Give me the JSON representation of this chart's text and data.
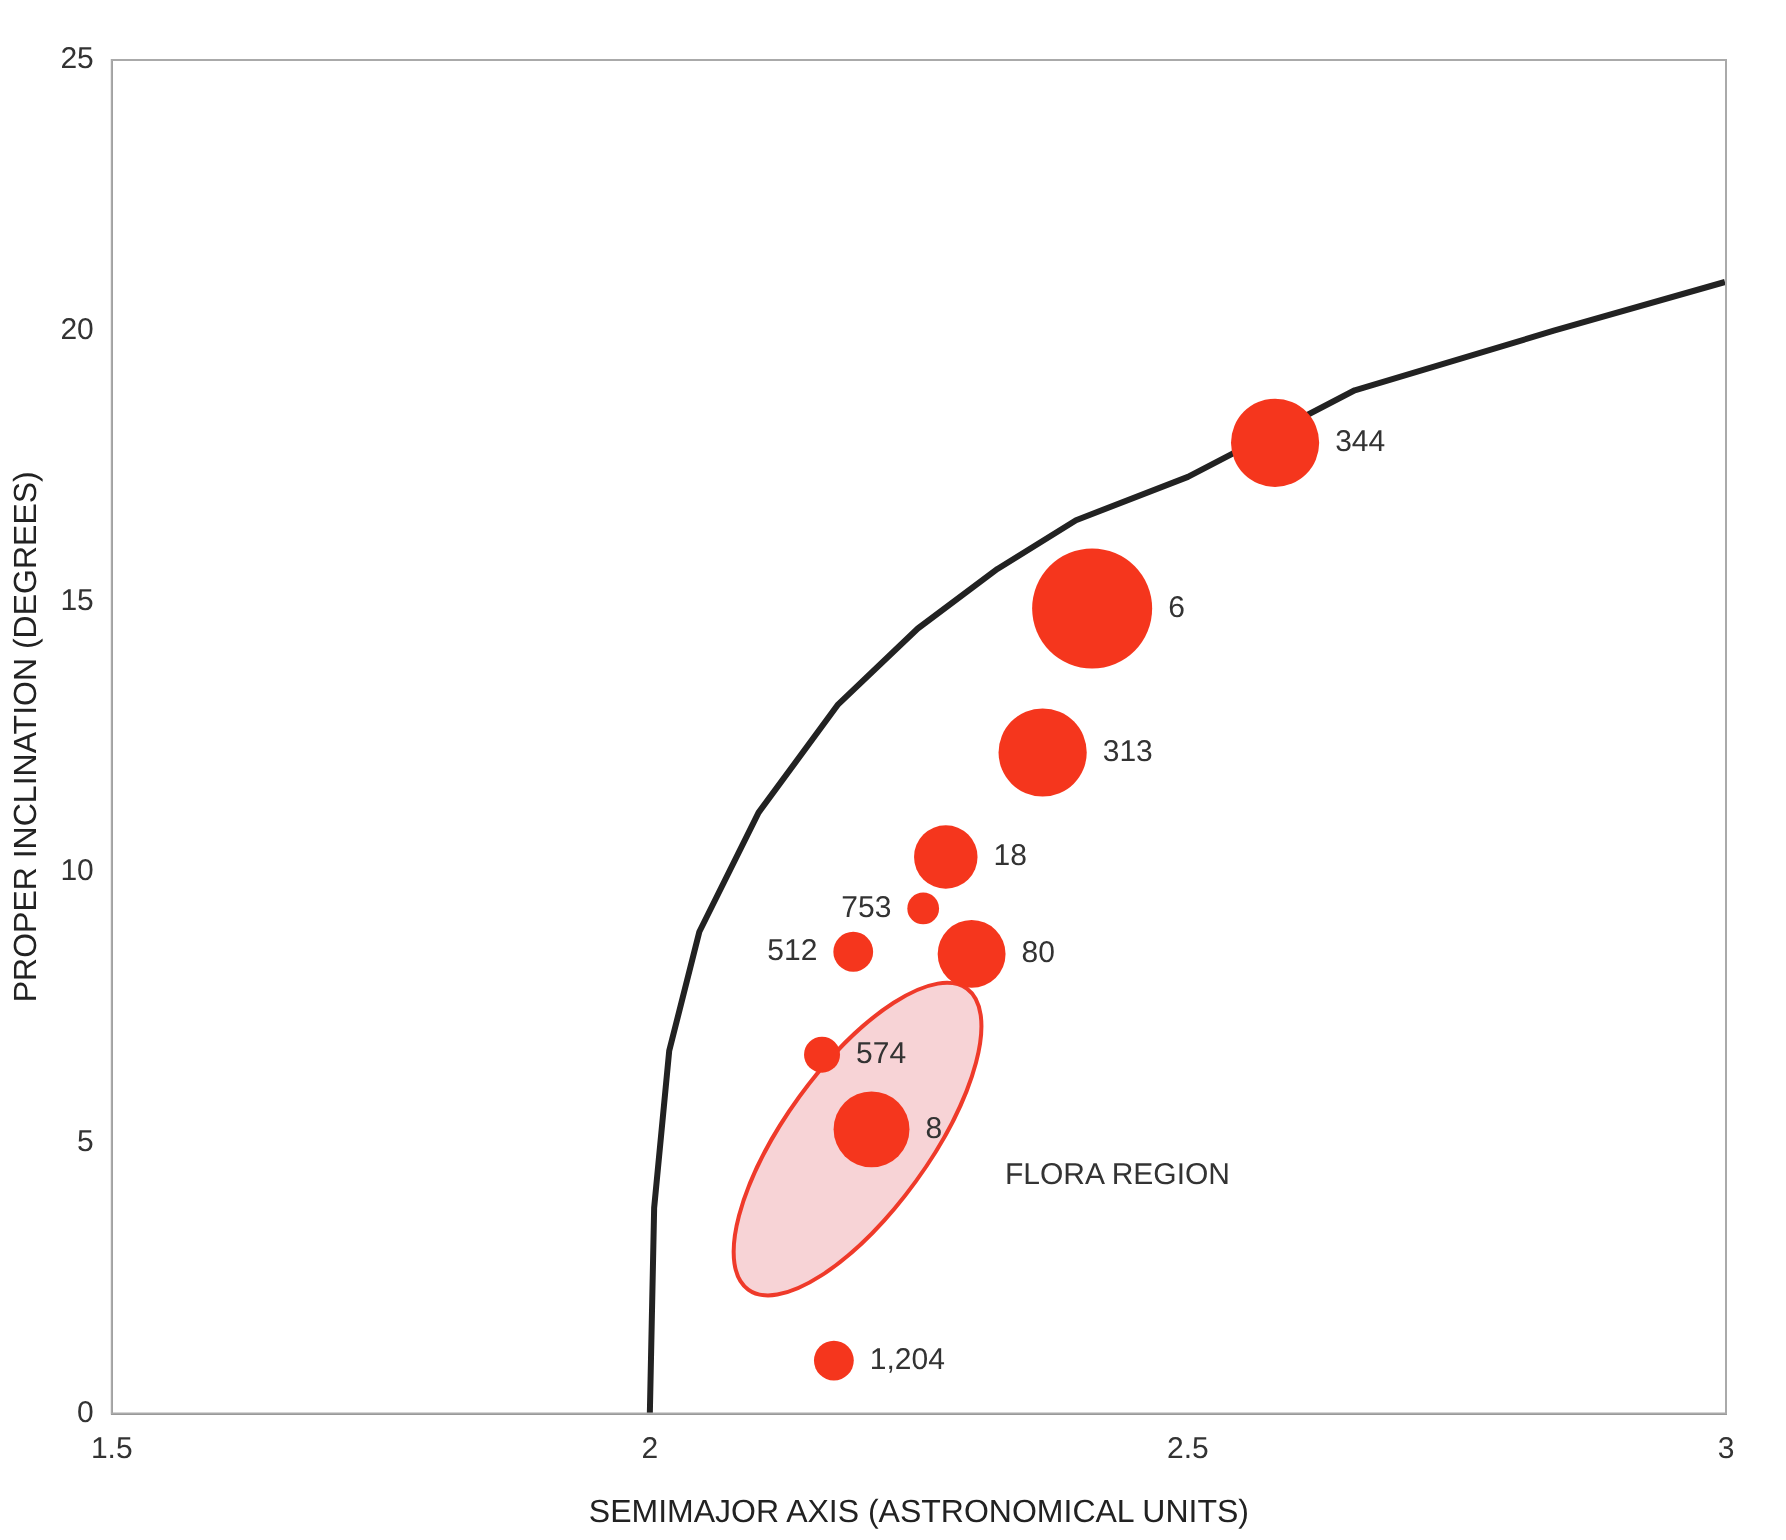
{
  "chart_data": {
    "type": "bubble",
    "xlabel": "SEMIMAJOR AXIS (ASTRONOMICAL UNITS)",
    "ylabel": "PROPER INCLINATION (DEGREES)",
    "xlim": [
      1.5,
      3
    ],
    "xticks": [
      1.5,
      2,
      2.5,
      3
    ],
    "ylim": [
      0,
      25
    ],
    "yticks": [
      0,
      5,
      10,
      15,
      20,
      25
    ],
    "grid": false,
    "legend": false,
    "annotations": [
      "FLORA REGION"
    ],
    "series": [
      {
        "type": "line",
        "color": "#222222",
        "marker": "none",
        "line_style": "solid",
        "x": [
          2.0,
          2.004,
          2.018,
          2.046,
          2.101,
          2.175,
          2.249,
          2.323,
          2.396,
          2.5,
          2.655,
          2.84,
          2.999
        ],
        "values": [
          0,
          3.8,
          6.7,
          8.9,
          11.1,
          13.1,
          14.5,
          15.6,
          16.5,
          17.3,
          18.9,
          20.0,
          20.9
        ]
      },
      {
        "name": "344",
        "color": "#f5361d",
        "x": [
          2.581
        ],
        "values": [
          17.93
        ],
        "sizes": [
          0.54
        ]
      },
      {
        "name": "6",
        "color": "#f5361d",
        "x": [
          2.411
        ],
        "values": [
          14.87
        ],
        "sizes": [
          1
        ]
      },
      {
        "name": "313",
        "color": "#f5361d",
        "x": [
          2.365
        ],
        "values": [
          12.21
        ],
        "sizes": [
          0.54
        ]
      },
      {
        "name": "18",
        "color": "#f5361d",
        "x": [
          2.275
        ],
        "values": [
          10.28
        ],
        "sizes": [
          0.28
        ]
      },
      {
        "name": "753",
        "color": "#f5361d",
        "x": [
          2.254
        ],
        "values": [
          9.33
        ],
        "sizes": [
          0.07
        ]
      },
      {
        "name": "512",
        "color": "#f5361d",
        "x": [
          2.189
        ],
        "values": [
          8.53
        ],
        "sizes": [
          0.11
        ]
      },
      {
        "name": "80",
        "color": "#f5361d",
        "x": [
          2.299
        ],
        "values": [
          8.49
        ],
        "sizes": [
          0.32
        ]
      },
      {
        "name": "574",
        "color": "#f5361d",
        "x": [
          2.16
        ],
        "values": [
          6.63
        ],
        "sizes": [
          0.09
        ]
      },
      {
        "name": "8",
        "color": "#f5361d",
        "x": [
          2.206
        ],
        "values": [
          5.25
        ],
        "sizes": [
          0.4
        ]
      },
      {
        "name": "1,204",
        "color": "#f5361d",
        "x": [
          2.171
        ],
        "values": [
          0.98
        ],
        "sizes": [
          0.11
        ]
      }
    ]
  }
}
